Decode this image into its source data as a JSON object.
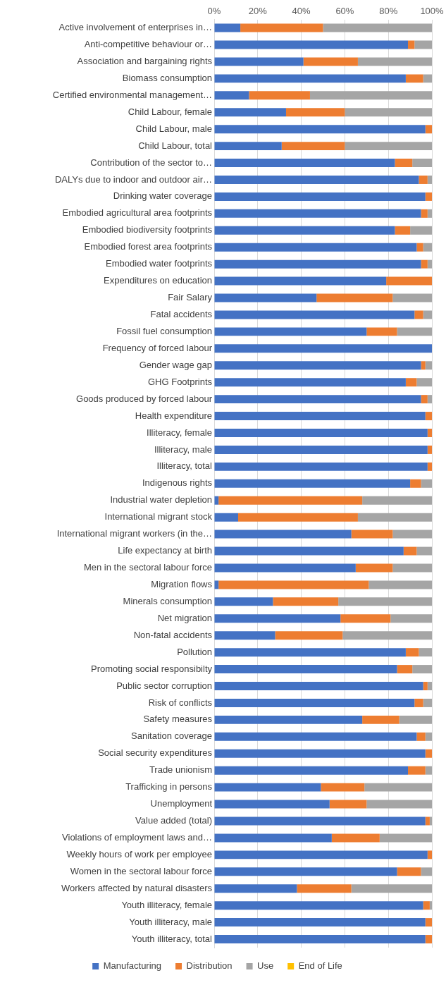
{
  "chart_data": {
    "type": "bar",
    "orientation": "horizontal",
    "stacked": true,
    "categories": [
      "Active involvement of enterprises in…",
      "Anti-competitive behaviour or…",
      "Association and bargaining rights",
      "Biomass consumption",
      "Certified environmental management…",
      "Child Labour, female",
      "Child Labour, male",
      "Child Labour, total",
      "Contribution of the sector to…",
      "DALYs due to indoor and outdoor air…",
      "Drinking water coverage",
      "Embodied agricultural area footprints",
      "Embodied biodiversity footprints",
      "Embodied forest area footprints",
      "Embodied water footprints",
      "Expenditures on education",
      "Fair Salary",
      "Fatal accidents",
      "Fossil fuel consumption",
      "Frequency of forced labour",
      "Gender wage gap",
      "GHG Footprints",
      "Goods produced by forced labour",
      "Health expenditure",
      "Illiteracy, female",
      "Illiteracy, male",
      "Illiteracy, total",
      "Indigenous rights",
      "Industrial water depletion",
      "International migrant stock",
      "International migrant workers (in the…",
      "Life expectancy at birth",
      "Men in the sectoral labour force",
      "Migration flows",
      "Minerals consumption",
      "Net migration",
      "Non-fatal accidents",
      "Pollution",
      "Promoting social responsibilty",
      "Public sector corruption",
      "Risk of conflicts",
      "Safety measures",
      "Sanitation coverage",
      "Social security expenditures",
      "Trade unionism",
      "Trafficking in persons",
      "Unemployment",
      "Value added (total)",
      "Violations of employment laws and…",
      "Weekly hours of work per employee",
      "Women in the sectoral labour force",
      "Workers affected by natural disasters",
      "Youth illiteracy, female",
      "Youth illiteracy, male",
      "Youth illiteracy, total"
    ],
    "series": [
      {
        "name": "Manufacturing",
        "color": "#4472c4",
        "values": [
          12,
          89,
          41,
          88,
          16,
          33,
          97,
          31,
          83,
          94,
          97,
          95,
          83,
          93,
          95,
          79,
          47,
          92,
          70,
          100,
          95,
          88,
          95,
          97,
          98,
          98,
          98,
          90,
          2,
          11,
          63,
          87,
          65,
          2,
          27,
          58,
          28,
          88,
          84,
          96,
          92,
          68,
          93,
          97,
          89,
          49,
          53,
          97,
          54,
          98,
          84,
          38,
          96,
          97,
          97
        ]
      },
      {
        "name": "Distribution",
        "color": "#ed7d31",
        "values": [
          38,
          3,
          25,
          8,
          28,
          27,
          3,
          29,
          8,
          4,
          3,
          3,
          7,
          3,
          3,
          21,
          35,
          4,
          14,
          0,
          2,
          5,
          3,
          3,
          2,
          2,
          2,
          5,
          66,
          55,
          19,
          6,
          17,
          69,
          30,
          23,
          31,
          6,
          7,
          2,
          4,
          17,
          4,
          3,
          8,
          20,
          17,
          2,
          22,
          2,
          11,
          25,
          3,
          3,
          3
        ]
      },
      {
        "name": "Use",
        "color": "#a5a5a5",
        "values": [
          50,
          8,
          34,
          4,
          56,
          40,
          0,
          40,
          9,
          2,
          0,
          2,
          10,
          4,
          2,
          0,
          18,
          4,
          16,
          0,
          3,
          7,
          2,
          0,
          0,
          0,
          0,
          5,
          32,
          34,
          18,
          7,
          18,
          29,
          43,
          19,
          41,
          6,
          9,
          2,
          4,
          15,
          3,
          0,
          3,
          31,
          30,
          1,
          24,
          0,
          5,
          37,
          1,
          0,
          0
        ]
      },
      {
        "name": "End of Life",
        "color": "#ffc000",
        "values": [
          0,
          0,
          0,
          0,
          0,
          0,
          0,
          0,
          0,
          0,
          0,
          0,
          0,
          0,
          0,
          0,
          0,
          0,
          0,
          0,
          0,
          0,
          0,
          0,
          0,
          0,
          0,
          0,
          0,
          0,
          0,
          0,
          0,
          0,
          0,
          0,
          0,
          0,
          0,
          0,
          0,
          0,
          0,
          0,
          0,
          0,
          0,
          0,
          0,
          0,
          0,
          0,
          0,
          0,
          0
        ]
      }
    ],
    "xlim": [
      0,
      100
    ],
    "xticks": [
      {
        "value": 0,
        "label": "0%"
      },
      {
        "value": 20,
        "label": "20%"
      },
      {
        "value": 40,
        "label": "40%"
      },
      {
        "value": 60,
        "label": "60%"
      },
      {
        "value": 80,
        "label": "80%"
      },
      {
        "value": 100,
        "label": "100%"
      }
    ],
    "grid": "x",
    "legend": "bottom"
  }
}
